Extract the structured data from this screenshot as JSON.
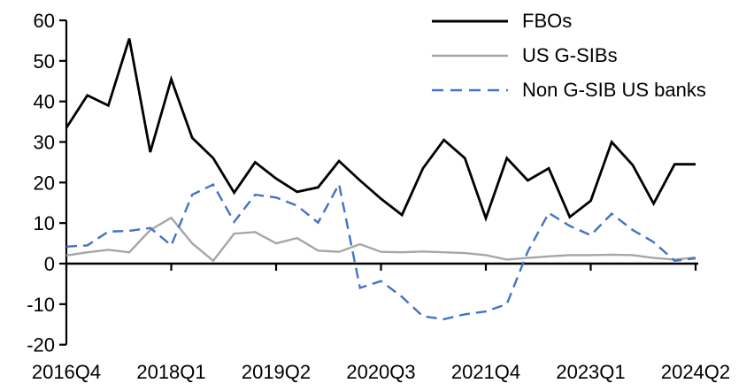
{
  "chart_data": {
    "type": "line",
    "categories": [
      "2016Q4",
      "2017Q1",
      "2017Q2",
      "2017Q3",
      "2017Q4",
      "2018Q1",
      "2018Q2",
      "2018Q3",
      "2018Q4",
      "2019Q1",
      "2019Q2",
      "2019Q3",
      "2019Q4",
      "2020Q1",
      "2020Q2",
      "2020Q3",
      "2020Q4",
      "2021Q1",
      "2021Q2",
      "2021Q3",
      "2021Q4",
      "2022Q1",
      "2022Q2",
      "2022Q3",
      "2022Q4",
      "2023Q1",
      "2023Q2",
      "2023Q3",
      "2023Q4",
      "2024Q1",
      "2024Q2"
    ],
    "x_tick_labels": [
      "2016Q4",
      "2018Q1",
      "2019Q2",
      "2020Q3",
      "2021Q4",
      "2023Q1",
      "2024Q2"
    ],
    "x_tick_every": 5,
    "y_ticks": [
      60,
      50,
      40,
      30,
      20,
      10,
      0,
      -10,
      -20
    ],
    "ylim": [
      -20,
      60
    ],
    "grid": false,
    "legend_position": "top-right",
    "series": [
      {
        "name": "FBOs",
        "color": "#000000",
        "style": "solid",
        "values": [
          33.5,
          41.5,
          39,
          55.5,
          27.5,
          45.5,
          31,
          26,
          17.5,
          25,
          21,
          17.7,
          18.8,
          25.3,
          20.5,
          16,
          12,
          23.5,
          30.5,
          26,
          11.2,
          26,
          20.5,
          23.5,
          11.5,
          15.5,
          30,
          24.3,
          14.8,
          24.5,
          24.5
        ]
      },
      {
        "name": "US G-SIBs",
        "color": "#a6a6a6",
        "style": "solid",
        "values": [
          2,
          2.8,
          3.4,
          2.8,
          8.3,
          11.3,
          5,
          0.7,
          7.4,
          7.8,
          5,
          6.3,
          3.2,
          2.9,
          4.8,
          2.9,
          2.8,
          3,
          2.8,
          2.6,
          2.1,
          1,
          1.4,
          1.8,
          2.1,
          2.1,
          2.2,
          2.1,
          1.4,
          1,
          1.5
        ]
      },
      {
        "name": "Non G-SIB US banks",
        "color": "#4472c4",
        "style": "dashed",
        "values": [
          4.2,
          4.5,
          7.9,
          8.1,
          8.8,
          4.5,
          17,
          19.5,
          10.3,
          17,
          16.3,
          14.3,
          10.1,
          19.6,
          -6,
          -4.3,
          -8.2,
          -13,
          -13.7,
          -12.5,
          -11.8,
          -10,
          3,
          12.5,
          9.3,
          7,
          12.3,
          8.3,
          5.3,
          0.7,
          1.3
        ]
      }
    ]
  }
}
